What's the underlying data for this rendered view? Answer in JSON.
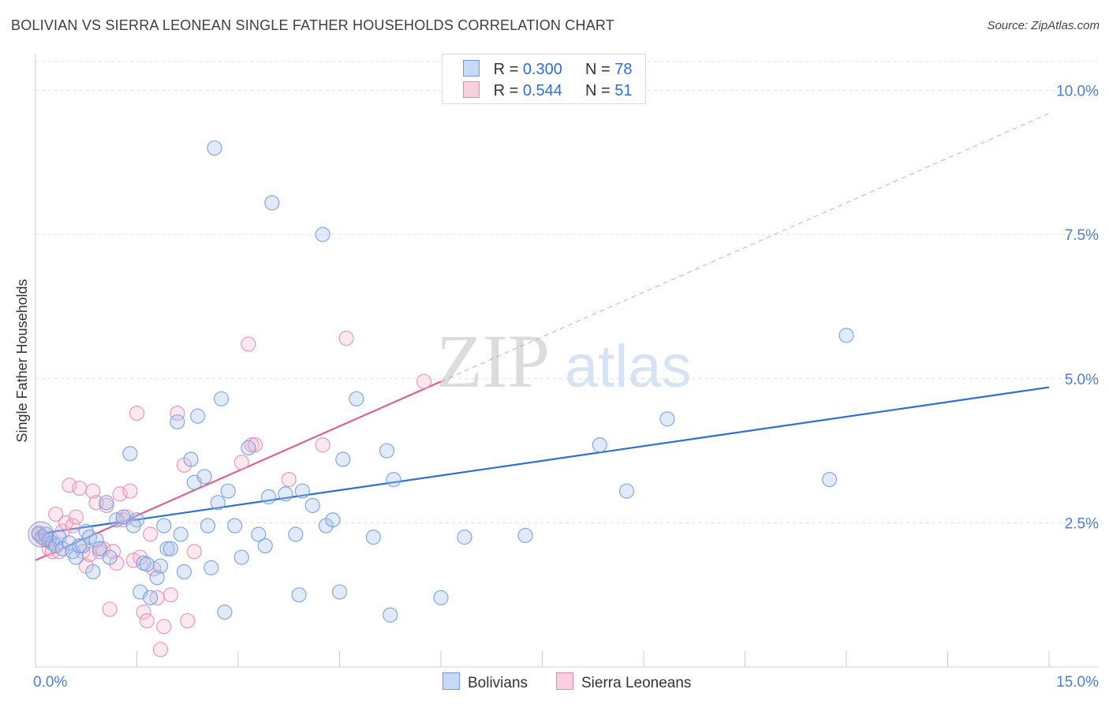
{
  "title": "BOLIVIAN VS SIERRA LEONEAN SINGLE FATHER HOUSEHOLDS CORRELATION CHART",
  "source": "Source: ZipAtlas.com",
  "watermark": {
    "zip": "ZIP",
    "atlas": "atlas"
  },
  "legend": {
    "r_label": "R =",
    "n_label": "N =",
    "rows": [
      {
        "name": "Bolivians",
        "r": "0.300",
        "n": "78",
        "fill": "#a8c4ef",
        "stroke": "#6e9be0"
      },
      {
        "name": "Sierra Leoneans",
        "r": "0.544",
        "n": "51",
        "fill": "#f7bcd0",
        "stroke": "#e88aab"
      }
    ]
  },
  "chart_data": {
    "type": "scatter",
    "title": "BOLIVIAN VS SIERRA LEONEAN SINGLE FATHER HOUSEHOLDS CORRELATION CHART",
    "xlabel": "",
    "ylabel": "Single Father Households",
    "xlim": [
      0,
      15
    ],
    "ylim": [
      0,
      10.5
    ],
    "x_tick_labels": [
      {
        "value": 0,
        "label": "0.0%"
      },
      {
        "value": 15,
        "label": "15.0%"
      }
    ],
    "y_ticks": [
      {
        "value": 2.5,
        "label": "2.5%"
      },
      {
        "value": 5.0,
        "label": "5.0%"
      },
      {
        "value": 7.5,
        "label": "7.5%"
      },
      {
        "value": 10.0,
        "label": "10.0%"
      }
    ],
    "series": [
      {
        "name": "Bolivians",
        "color": "#6e9be0",
        "fill": "#a8c4ef",
        "trend": {
          "x0": 0,
          "y0": 2.3,
          "x1": 15,
          "y1": 4.85,
          "style": "solid",
          "color": "#2e6fd0"
        },
        "points": [
          [
            0.05,
            2.32
          ],
          [
            0.1,
            2.25
          ],
          [
            0.15,
            2.3
          ],
          [
            0.2,
            2.2
          ],
          [
            0.25,
            2.15
          ],
          [
            0.3,
            2.1
          ],
          [
            0.35,
            2.25
          ],
          [
            0.4,
            2.05
          ],
          [
            0.5,
            2.15
          ],
          [
            0.55,
            2.0
          ],
          [
            0.6,
            1.9
          ],
          [
            0.7,
            2.1
          ],
          [
            0.75,
            2.35
          ],
          [
            0.8,
            2.25
          ],
          [
            0.85,
            1.65
          ],
          [
            0.9,
            2.2
          ],
          [
            0.95,
            2.05
          ],
          [
            1.05,
            2.85
          ],
          [
            1.1,
            1.9
          ],
          [
            1.2,
            2.55
          ],
          [
            1.3,
            2.6
          ],
          [
            1.4,
            3.7
          ],
          [
            1.5,
            2.55
          ],
          [
            1.55,
            1.3
          ],
          [
            1.6,
            1.8
          ],
          [
            1.65,
            1.78
          ],
          [
            1.7,
            1.2
          ],
          [
            1.8,
            1.55
          ],
          [
            1.85,
            1.75
          ],
          [
            1.9,
            2.45
          ],
          [
            1.95,
            2.05
          ],
          [
            2.0,
            2.05
          ],
          [
            2.1,
            4.25
          ],
          [
            2.15,
            2.3
          ],
          [
            2.2,
            1.65
          ],
          [
            2.3,
            3.6
          ],
          [
            2.35,
            3.2
          ],
          [
            2.4,
            4.35
          ],
          [
            2.5,
            3.3
          ],
          [
            2.55,
            2.45
          ],
          [
            2.6,
            1.72
          ],
          [
            2.65,
            9.0
          ],
          [
            2.7,
            2.85
          ],
          [
            2.75,
            4.65
          ],
          [
            2.8,
            0.95
          ],
          [
            2.85,
            3.05
          ],
          [
            2.95,
            2.45
          ],
          [
            3.05,
            1.9
          ],
          [
            3.15,
            3.8
          ],
          [
            3.3,
            2.3
          ],
          [
            3.4,
            2.1
          ],
          [
            3.45,
            2.95
          ],
          [
            3.5,
            8.05
          ],
          [
            3.7,
            3.0
          ],
          [
            3.85,
            2.3
          ],
          [
            3.9,
            1.25
          ],
          [
            3.95,
            3.05
          ],
          [
            4.1,
            2.8
          ],
          [
            4.25,
            7.5
          ],
          [
            4.3,
            2.45
          ],
          [
            4.4,
            2.55
          ],
          [
            4.5,
            1.3
          ],
          [
            4.55,
            3.6
          ],
          [
            4.75,
            4.65
          ],
          [
            5.0,
            2.25
          ],
          [
            5.2,
            3.75
          ],
          [
            5.25,
            0.9
          ],
          [
            5.3,
            3.25
          ],
          [
            6.0,
            1.2
          ],
          [
            6.35,
            2.25
          ],
          [
            7.25,
            2.28
          ],
          [
            8.35,
            3.85
          ],
          [
            8.75,
            3.05
          ],
          [
            9.35,
            4.3
          ],
          [
            11.75,
            3.25
          ],
          [
            12.0,
            5.75
          ],
          [
            0.65,
            2.1
          ],
          [
            1.45,
            2.45
          ]
        ]
      },
      {
        "name": "Sierra Leoneans",
        "color": "#e88aab",
        "fill": "#f7bcd0",
        "trend": {
          "x0": 0,
          "y0": 1.85,
          "x1": 6.0,
          "y1": 4.95,
          "style": "solid",
          "color": "#e06090",
          "ext": {
            "x1": 15,
            "y1": 9.6,
            "style": "dashed"
          }
        },
        "points": [
          [
            0.05,
            2.3
          ],
          [
            0.1,
            2.25
          ],
          [
            0.15,
            2.2
          ],
          [
            0.2,
            2.05
          ],
          [
            0.25,
            2.0
          ],
          [
            0.3,
            2.65
          ],
          [
            0.35,
            2.0
          ],
          [
            0.4,
            2.35
          ],
          [
            0.45,
            2.5
          ],
          [
            0.5,
            3.15
          ],
          [
            0.55,
            2.45
          ],
          [
            0.6,
            2.6
          ],
          [
            0.65,
            3.1
          ],
          [
            0.7,
            2.0
          ],
          [
            0.75,
            1.75
          ],
          [
            0.8,
            1.95
          ],
          [
            0.85,
            3.05
          ],
          [
            0.9,
            2.85
          ],
          [
            0.95,
            2.0
          ],
          [
            1.0,
            2.05
          ],
          [
            1.05,
            2.8
          ],
          [
            1.1,
            1.0
          ],
          [
            1.15,
            2.0
          ],
          [
            1.2,
            1.8
          ],
          [
            1.25,
            3.0
          ],
          [
            1.3,
            2.55
          ],
          [
            1.35,
            2.6
          ],
          [
            1.4,
            3.05
          ],
          [
            1.45,
            1.85
          ],
          [
            1.5,
            4.4
          ],
          [
            1.55,
            1.9
          ],
          [
            1.6,
            0.95
          ],
          [
            1.65,
            0.8
          ],
          [
            1.7,
            2.3
          ],
          [
            1.75,
            1.7
          ],
          [
            1.8,
            1.2
          ],
          [
            1.85,
            0.3
          ],
          [
            1.9,
            0.7
          ],
          [
            2.0,
            1.25
          ],
          [
            2.1,
            4.4
          ],
          [
            2.2,
            3.5
          ],
          [
            2.25,
            0.8
          ],
          [
            2.35,
            2.0
          ],
          [
            3.05,
            3.55
          ],
          [
            3.15,
            5.6
          ],
          [
            3.2,
            3.85
          ],
          [
            3.25,
            3.85
          ],
          [
            3.75,
            3.25
          ],
          [
            4.25,
            3.85
          ],
          [
            4.6,
            5.7
          ],
          [
            5.75,
            4.95
          ]
        ]
      }
    ]
  }
}
